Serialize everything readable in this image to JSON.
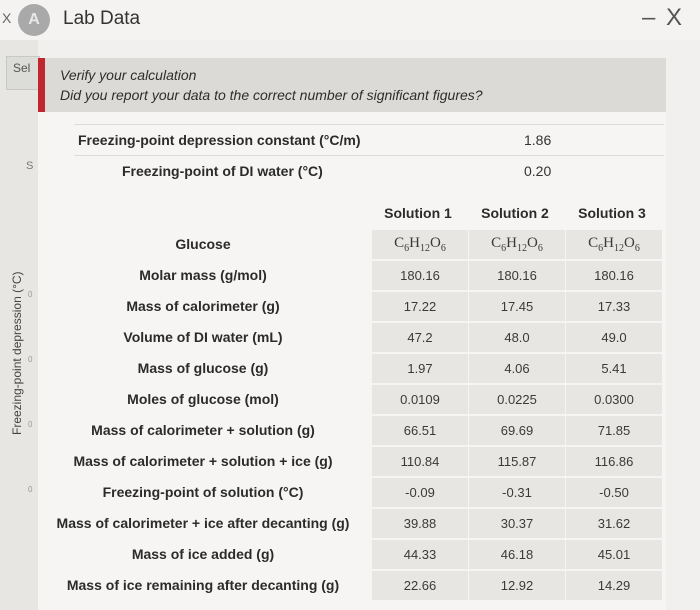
{
  "window": {
    "title": "Lab Data",
    "left_close": "X",
    "app_icon_letter": "A",
    "controls": "– X"
  },
  "side": {
    "tab_label": "Sel",
    "s_label": "S",
    "y_axis_label": "Freezing-point depression (°C)",
    "ticks": [
      "0",
      "0",
      "0",
      "0"
    ]
  },
  "verify": {
    "title": "Verify your calculation",
    "question": "Did you report your data to the correct number of significant figures?"
  },
  "constants": [
    {
      "label": "Freezing-point depression constant (°C/m)",
      "value": "1.86"
    },
    {
      "label": "Freezing-point of DI water (°C)",
      "value": "0.20"
    }
  ],
  "table": {
    "columns": [
      "Solution 1",
      "Solution 2",
      "Solution 3"
    ],
    "compound_row": {
      "label": "Glucose",
      "formula": {
        "c": "C",
        "c_sub": "6",
        "h": "H",
        "h_sub": "12",
        "o": "O",
        "o_sub": "6"
      }
    },
    "rows": [
      {
        "label": "Molar mass (g/mol)",
        "values": [
          "180.16",
          "180.16",
          "180.16"
        ]
      },
      {
        "label": "Mass of calorimeter (g)",
        "values": [
          "17.22",
          "17.45",
          "17.33"
        ]
      },
      {
        "label": "Volume of DI water (mL)",
        "values": [
          "47.2",
          "48.0",
          "49.0"
        ]
      },
      {
        "label": "Mass of glucose (g)",
        "values": [
          "1.97",
          "4.06",
          "5.41"
        ]
      },
      {
        "label": "Moles of glucose (mol)",
        "values": [
          "0.0109",
          "0.0225",
          "0.0300"
        ]
      },
      {
        "label": "Mass of calorimeter + solution (g)",
        "values": [
          "66.51",
          "69.69",
          "71.85"
        ]
      },
      {
        "label": "Mass of calorimeter + solution + ice (g)",
        "values": [
          "110.84",
          "115.87",
          "116.86"
        ]
      },
      {
        "label": "Freezing-point of solution (°C)",
        "values": [
          "-0.09",
          "-0.31",
          "-0.50"
        ]
      },
      {
        "label": "Mass of calorimeter + ice after decanting (g)",
        "values": [
          "39.88",
          "30.37",
          "31.62"
        ]
      },
      {
        "label": "Mass of ice added (g)",
        "values": [
          "44.33",
          "46.18",
          "45.01"
        ]
      },
      {
        "label": "Mass of ice remaining after decanting (g)",
        "values": [
          "22.66",
          "12.92",
          "14.29"
        ]
      }
    ]
  }
}
